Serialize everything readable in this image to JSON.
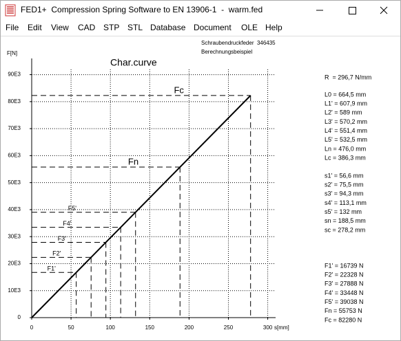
{
  "window": {
    "title": "FED1+  Compression Spring Software to EN 13906-1  -  warm.fed"
  },
  "menu": [
    "File",
    "Edit",
    "View",
    "CAD",
    "STP",
    "STL",
    "Database",
    "Document",
    "OLE",
    "Help"
  ],
  "header": {
    "line1": "Schraubendruckfeder  346435",
    "line2": "Berechnungsbeispiel"
  },
  "parameters": [
    [
      "R  = 296,7 N/mm"
    ],
    [
      "L0 = 664,5 mm",
      "L1' = 607,9 mm",
      "L2' = 589 mm",
      "L3' = 570,2 mm",
      "L4' = 551,4 mm",
      "L5' = 532,5 mm",
      "Ln = 476,0 mm",
      "Lc = 386,3 mm"
    ],
    [
      "s1' = 56,6 mm",
      "s2' = 75,5 mm",
      "s3' = 94,3 mm",
      "s4' = 113,1 mm",
      "s5' = 132 mm",
      "sn = 188,5 mm",
      "sc = 278,2 mm"
    ],
    [
      "F1' = 16739 N",
      "F2' = 22328 N",
      "F3' = 27888 N",
      "F4' = 33448 N",
      "F5' = 39038 N",
      "Fn = 55753 N",
      "Fc = 82280 N"
    ]
  ],
  "chart_data": {
    "type": "line",
    "title": "Char.curve",
    "y_label": "F[N]",
    "x_label": "s[mm]",
    "x": [
      56.6,
      75.5,
      94.3,
      113.1,
      132,
      188.5,
      278.2
    ],
    "point_labels": [
      "F1'",
      "F2'",
      "F3'",
      "F4'",
      "F5'",
      "Fn",
      "Fc"
    ],
    "series": [
      {
        "color": "#000000",
        "values": [
          16739,
          22328,
          27888,
          33448,
          39038,
          55753,
          82280
        ]
      }
    ],
    "xlim": [
      0,
      310
    ],
    "ylim": [
      0,
      96000
    ],
    "xticks": [
      0,
      50,
      100,
      150,
      200,
      250,
      300
    ],
    "yticks": [
      0,
      {
        "value": 10000,
        "label": "10E3"
      },
      {
        "value": 20000,
        "label": "20E3"
      },
      {
        "value": 30000,
        "label": "30E3"
      },
      {
        "value": 40000,
        "label": "40E3"
      },
      {
        "value": 50000,
        "label": "50E3"
      },
      {
        "value": 60000,
        "label": "60E3"
      },
      {
        "value": 70000,
        "label": "70E3"
      },
      {
        "value": 80000,
        "label": "80E3"
      },
      {
        "value": 90000,
        "label": "90E3"
      }
    ],
    "grid": true
  }
}
